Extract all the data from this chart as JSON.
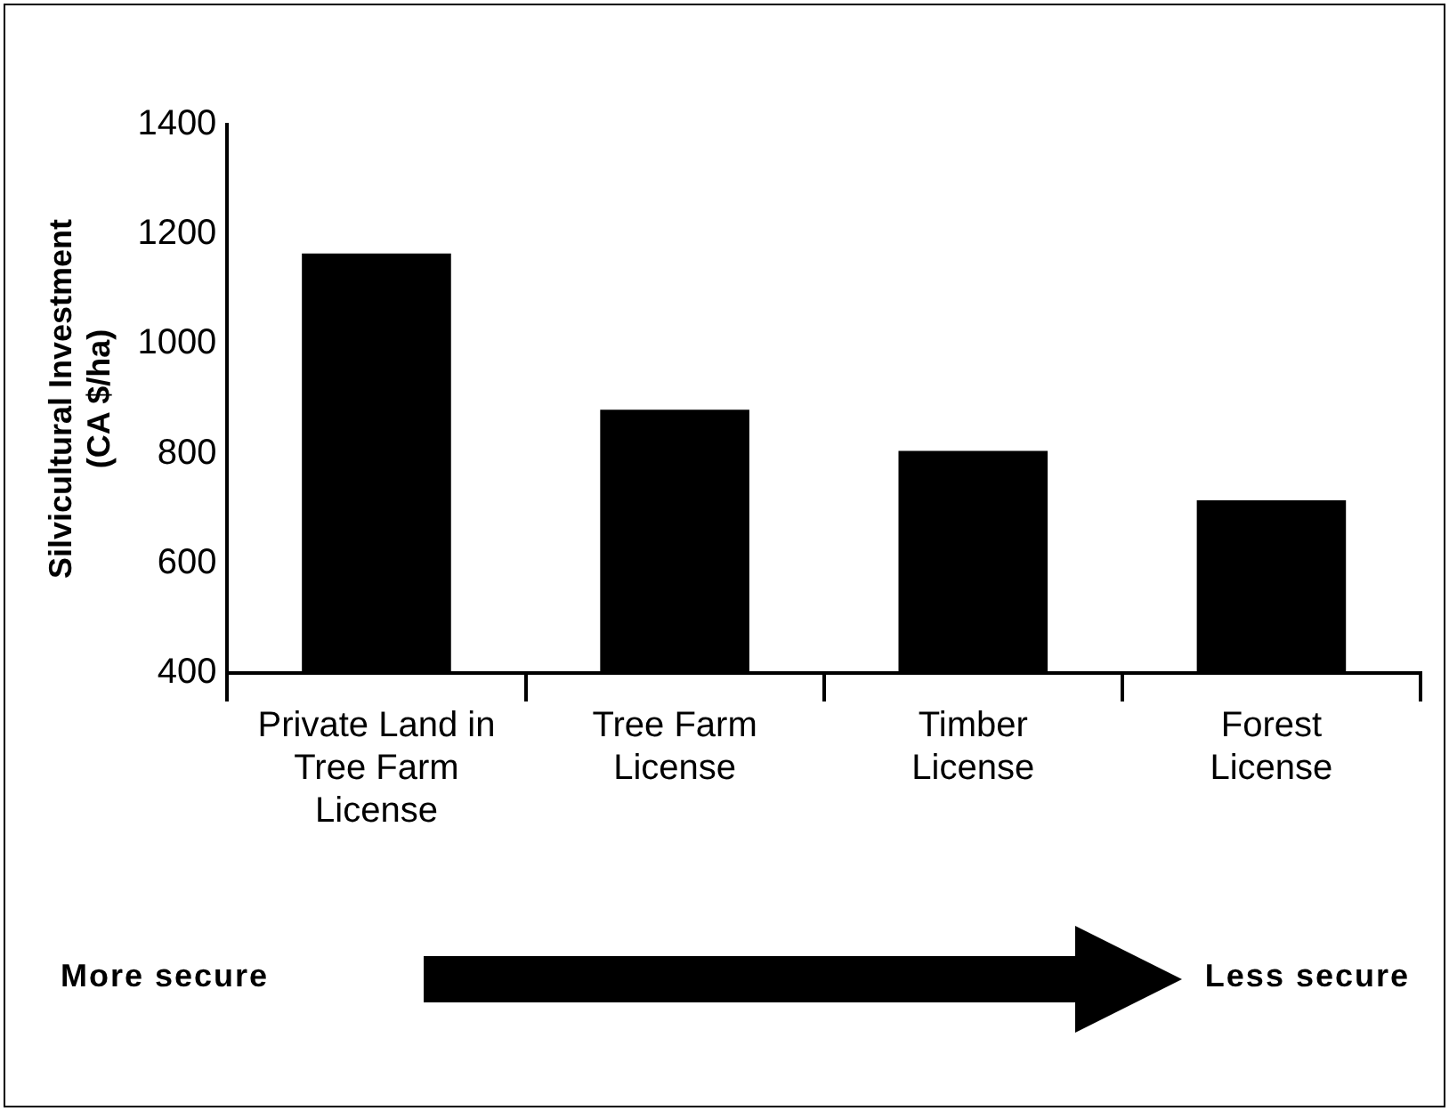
{
  "chart_data": {
    "type": "bar",
    "ylabel": "Silvicultural Investment\n(CA $/ha)",
    "categories": [
      "Private Land in\nTree Farm\nLicense",
      "Tree Farm\nLicense",
      "Timber\nLicense",
      "Forest\nLicense"
    ],
    "values": [
      1165,
      880,
      805,
      715
    ],
    "color": "#000000",
    "ylim": [
      400,
      1400
    ],
    "yticks": [
      400,
      600,
      800,
      1000,
      1200,
      1400
    ],
    "grid": false,
    "legend": false,
    "annotations": [
      "More secure",
      "Less secure"
    ]
  }
}
